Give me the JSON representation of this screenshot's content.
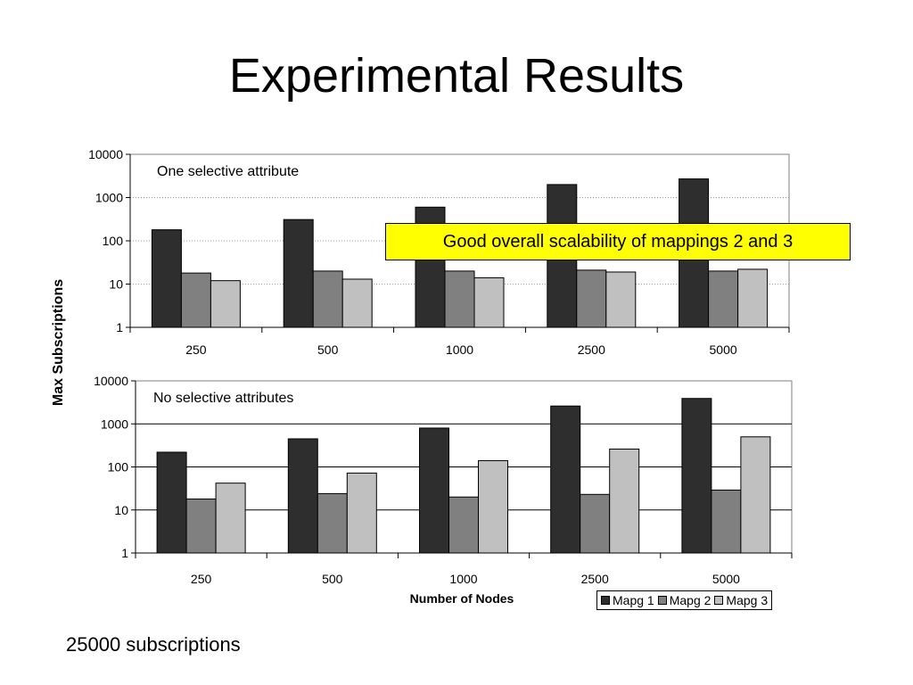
{
  "slide": {
    "title": "Experimental Results",
    "callout": "Good overall scalability of mappings 2 and 3",
    "footnote": "25000 subscriptions"
  },
  "colors": {
    "mapg1": "#2e2e2e",
    "mapg2": "#808080",
    "mapg3": "#c0c0c0"
  },
  "chart_data": [
    {
      "type": "bar",
      "panel_label": "One selective attribute",
      "categories": [
        "250",
        "500",
        "1000",
        "2500",
        "5000"
      ],
      "series": [
        {
          "name": "Mapg 1",
          "values": [
            180,
            310,
            600,
            2000,
            2700
          ]
        },
        {
          "name": "Mapg 2",
          "values": [
            18,
            20,
            20,
            21,
            20
          ]
        },
        {
          "name": "Mapg 3",
          "values": [
            12,
            13,
            14,
            19,
            22
          ]
        }
      ],
      "yscale": "log",
      "ylim": [
        1,
        10000
      ],
      "yticks": [
        "1",
        "10",
        "100",
        "1000",
        "10000"
      ],
      "grid": "dotted",
      "ylabel": "Max Subscriptions",
      "xlabel": ""
    },
    {
      "type": "bar",
      "panel_label": "No selective attributes",
      "categories": [
        "250",
        "500",
        "1000",
        "2500",
        "5000"
      ],
      "series": [
        {
          "name": "Mapg 1",
          "values": [
            220,
            450,
            800,
            2600,
            3900
          ]
        },
        {
          "name": "Mapg 2",
          "values": [
            18,
            24,
            20,
            23,
            29
          ]
        },
        {
          "name": "Mapg 3",
          "values": [
            42,
            72,
            140,
            260,
            500
          ]
        }
      ],
      "yscale": "log",
      "ylim": [
        1,
        10000
      ],
      "yticks": [
        "1",
        "10",
        "100",
        "1000",
        "10000"
      ],
      "grid": "solid",
      "ylabel": "Max Subscriptions",
      "xlabel": "Number of Nodes"
    }
  ],
  "axes": {
    "ylabel": "Max Subscriptions",
    "xlabel": "Number of Nodes"
  },
  "legend": {
    "placement": "bottom-right",
    "items": [
      "Mapg 1",
      "Mapg 2",
      "Mapg 3"
    ]
  }
}
